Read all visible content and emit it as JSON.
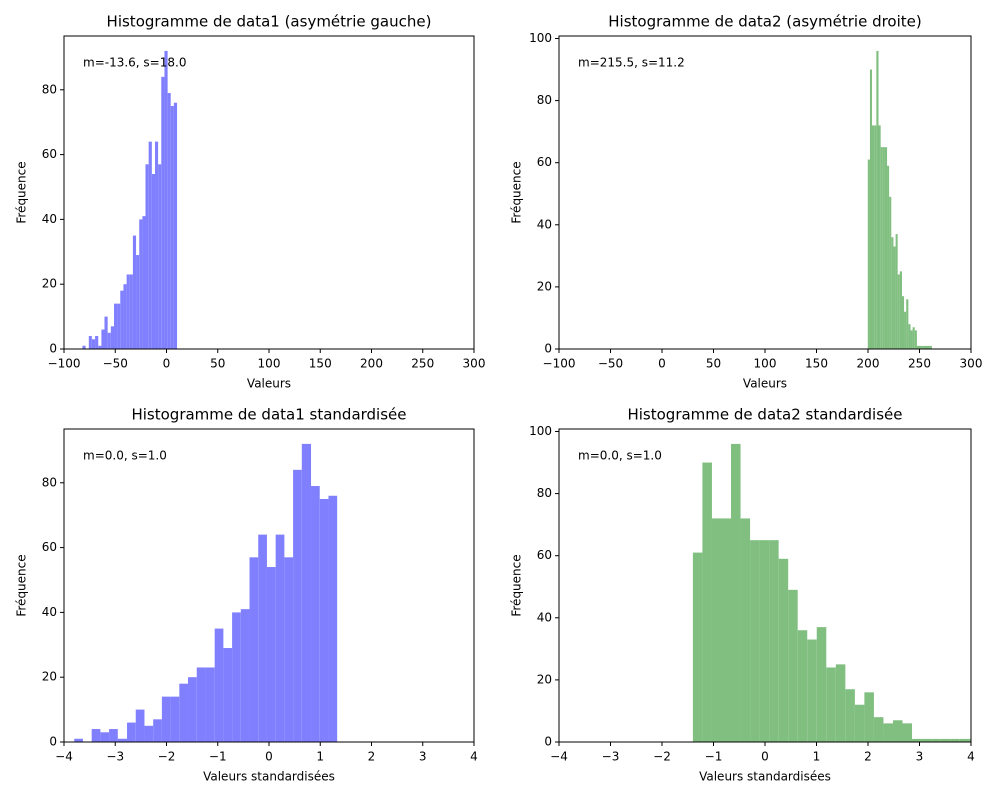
{
  "chart_data": [
    {
      "type": "histogram",
      "title": "Histogramme de data1 (asymétrie gauche)",
      "xlabel": "Valeurs",
      "ylabel": "Fréquence",
      "annotation": "m=-13.6, s=18.0",
      "color": "#8080ff",
      "bins": [
        -82.0,
        -78.9,
        -75.8,
        -72.8,
        -69.7,
        -66.6,
        -63.5,
        -60.5,
        -57.4,
        -54.3,
        -51.2,
        -48.2,
        -45.1,
        -42.0,
        -38.9,
        -35.9,
        -32.8,
        -29.7,
        -26.6,
        -23.5,
        -20.5,
        -17.4,
        -14.3,
        -11.2,
        -8.2,
        -5.1,
        -2.0,
        1.1,
        4.1,
        7.2,
        10.3
      ],
      "values": [
        1,
        0,
        4,
        3,
        4,
        1,
        6,
        10,
        5,
        7,
        14,
        14,
        18,
        20,
        23,
        23,
        35,
        29,
        40,
        41,
        57,
        64,
        54,
        64,
        57,
        84,
        92,
        79,
        75,
        76
      ],
      "xlim": [
        -100,
        300
      ],
      "xticks": [
        {
          "value": -100,
          "label": "−100"
        },
        {
          "value": -50,
          "label": "−50"
        },
        0,
        50,
        100,
        150,
        200,
        250,
        300
      ],
      "ylim": [
        0,
        96.6
      ],
      "yticks": [
        0,
        20,
        40,
        60,
        80
      ]
    },
    {
      "type": "histogram",
      "title": "Histogramme de data2 (asymétrie droite)",
      "xlabel": "Valeurs",
      "ylabel": "Fréquence",
      "annotation": "m=215.5, s=11.2",
      "color": "#80bf80",
      "bins": [
        199.8,
        201.9,
        203.9,
        206.0,
        208.1,
        210.2,
        212.3,
        214.3,
        216.4,
        218.5,
        220.5,
        222.6,
        224.7,
        226.8,
        228.8,
        230.9,
        233.0,
        235.0,
        237.1,
        239.2,
        241.3,
        243.3,
        245.4,
        247.5,
        249.5,
        251.6,
        253.7,
        255.8,
        257.8,
        259.9,
        262.0
      ],
      "values": [
        61,
        90,
        72,
        72,
        96,
        72,
        65,
        65,
        65,
        59,
        49,
        36,
        33,
        37,
        24,
        25,
        17,
        12,
        16,
        8,
        6,
        7,
        6,
        1,
        1,
        1,
        1,
        1,
        1,
        1
      ],
      "xlim": [
        -100,
        300
      ],
      "xticks": [
        {
          "value": -100,
          "label": "−100"
        },
        {
          "value": -50,
          "label": "−50"
        },
        0,
        50,
        100,
        150,
        200,
        250,
        300
      ],
      "ylim": [
        0,
        100.8
      ],
      "yticks": [
        0,
        20,
        40,
        60,
        80,
        100
      ]
    },
    {
      "type": "histogram",
      "title": "Histogramme de data1 standardisée",
      "xlabel": "Valeurs standardisées",
      "ylabel": "Fréquence",
      "annotation": "m=0.0, s=1.0",
      "color": "#8080ff",
      "bins": [
        -3.8,
        -3.63,
        -3.46,
        -3.29,
        -3.12,
        -2.95,
        -2.77,
        -2.6,
        -2.43,
        -2.26,
        -2.09,
        -1.92,
        -1.75,
        -1.58,
        -1.41,
        -1.24,
        -1.06,
        -0.89,
        -0.72,
        -0.55,
        -0.38,
        -0.21,
        -0.04,
        0.13,
        0.3,
        0.47,
        0.64,
        0.82,
        0.99,
        1.16,
        1.33
      ],
      "values": [
        1,
        0,
        4,
        3,
        4,
        1,
        6,
        10,
        5,
        7,
        14,
        14,
        18,
        20,
        23,
        23,
        35,
        29,
        40,
        41,
        57,
        64,
        54,
        64,
        57,
        84,
        92,
        79,
        75,
        76
      ],
      "xlim": [
        -4,
        4
      ],
      "xticks": [
        {
          "value": -4,
          "label": "−4"
        },
        {
          "value": -3,
          "label": "−3"
        },
        {
          "value": -2,
          "label": "−2"
        },
        {
          "value": -1,
          "label": "−1"
        },
        0,
        1,
        2,
        3,
        4
      ],
      "ylim": [
        0,
        96.6
      ],
      "yticks": [
        0,
        20,
        40,
        60,
        80
      ]
    },
    {
      "type": "histogram",
      "title": "Histogramme de data2 standardisée",
      "xlabel": "Valeurs standardisées",
      "ylabel": "Fréquence",
      "annotation": "m=0.0, s=1.0",
      "color": "#80bf80",
      "bins": [
        -1.4,
        -1.215,
        -1.03,
        -0.845,
        -0.66,
        -0.475,
        -0.29,
        -0.105,
        0.08,
        0.265,
        0.45,
        0.635,
        0.82,
        1.005,
        1.19,
        1.375,
        1.56,
        1.745,
        1.93,
        2.115,
        2.3,
        2.485,
        2.67,
        2.855,
        3.04,
        3.225,
        3.41,
        3.595,
        3.78,
        3.965,
        4.15
      ],
      "values": [
        61,
        90,
        72,
        72,
        96,
        72,
        65,
        65,
        65,
        59,
        49,
        36,
        33,
        37,
        24,
        25,
        17,
        12,
        16,
        8,
        6,
        7,
        6,
        1,
        1,
        1,
        1,
        1,
        1,
        1
      ],
      "xlim": [
        -4,
        4
      ],
      "xticks": [
        {
          "value": -4,
          "label": "−4"
        },
        {
          "value": -3,
          "label": "−3"
        },
        {
          "value": -2,
          "label": "−2"
        },
        {
          "value": -1,
          "label": "−1"
        },
        0,
        1,
        2,
        3,
        4
      ],
      "ylim": [
        0,
        100.8
      ],
      "yticks": [
        0,
        20,
        40,
        60,
        80,
        100
      ]
    }
  ]
}
